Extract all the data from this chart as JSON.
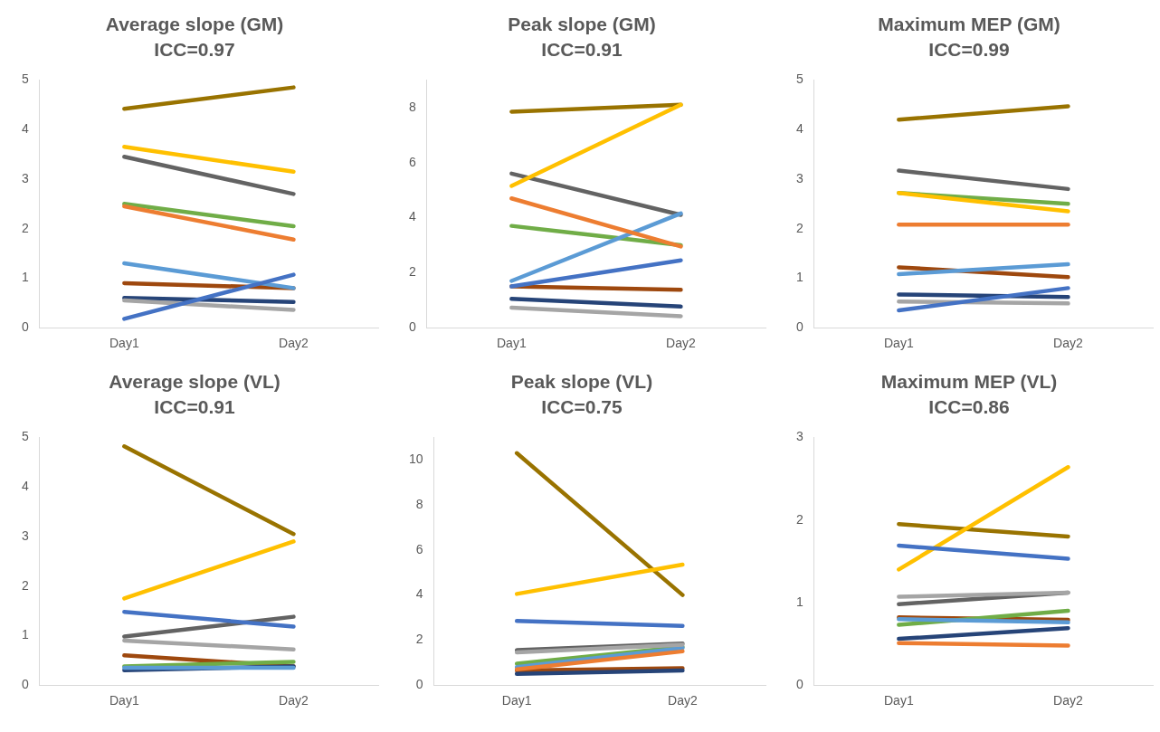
{
  "chart_data": [
    {
      "type": "line",
      "title": "Average slope (GM)",
      "subtitle": "ICC=0.97",
      "categories": [
        "Day1",
        "Day2"
      ],
      "ylim": [
        0,
        5
      ],
      "yticks": [
        0,
        1,
        2,
        3,
        4,
        5
      ],
      "grid": false,
      "series": [
        {
          "color": "#4472c4",
          "values": [
            0.18,
            1.07
          ]
        },
        {
          "color": "#ed7d31",
          "values": [
            2.45,
            1.78
          ]
        },
        {
          "color": "#a5a5a5",
          "values": [
            0.55,
            0.36
          ]
        },
        {
          "color": "#ffc000",
          "values": [
            3.65,
            3.15
          ]
        },
        {
          "color": "#5b9bd5",
          "values": [
            1.3,
            0.8
          ]
        },
        {
          "color": "#70ad47",
          "values": [
            2.5,
            2.05
          ]
        },
        {
          "color": "#264478",
          "values": [
            0.6,
            0.52
          ]
        },
        {
          "color": "#9e480e",
          "values": [
            0.9,
            0.8
          ]
        },
        {
          "color": "#636363",
          "values": [
            3.45,
            2.7
          ]
        },
        {
          "color": "#997300",
          "values": [
            4.42,
            4.85
          ]
        }
      ]
    },
    {
      "type": "line",
      "title": "Peak slope (GM)",
      "subtitle": "ICC=0.91",
      "categories": [
        "Day1",
        "Day2"
      ],
      "ylim": [
        0,
        9
      ],
      "yticks": [
        0,
        2,
        4,
        6,
        8
      ],
      "grid": false,
      "series": [
        {
          "color": "#4472c4",
          "values": [
            1.5,
            2.45
          ]
        },
        {
          "color": "#ed7d31",
          "values": [
            4.7,
            2.95
          ]
        },
        {
          "color": "#a5a5a5",
          "values": [
            0.73,
            0.42
          ]
        },
        {
          "color": "#ffc000",
          "values": [
            5.15,
            8.1
          ]
        },
        {
          "color": "#5b9bd5",
          "values": [
            1.7,
            4.15
          ]
        },
        {
          "color": "#70ad47",
          "values": [
            3.7,
            3.0
          ]
        },
        {
          "color": "#264478",
          "values": [
            1.05,
            0.77
          ]
        },
        {
          "color": "#9e480e",
          "values": [
            1.5,
            1.38
          ]
        },
        {
          "color": "#636363",
          "values": [
            5.6,
            4.1
          ]
        },
        {
          "color": "#997300",
          "values": [
            7.85,
            8.1
          ]
        }
      ]
    },
    {
      "type": "line",
      "title": "Maximum MEP (GM)",
      "subtitle": "ICC=0.99",
      "categories": [
        "Day1",
        "Day2"
      ],
      "ylim": [
        0,
        5
      ],
      "yticks": [
        0,
        1,
        2,
        3,
        4,
        5
      ],
      "grid": false,
      "series": [
        {
          "color": "#4472c4",
          "values": [
            0.35,
            0.8
          ]
        },
        {
          "color": "#ed7d31",
          "values": [
            2.08,
            2.08
          ]
        },
        {
          "color": "#a5a5a5",
          "values": [
            0.53,
            0.49
          ]
        },
        {
          "color": "#ffc000",
          "values": [
            2.72,
            2.35
          ]
        },
        {
          "color": "#5b9bd5",
          "values": [
            1.08,
            1.28
          ]
        },
        {
          "color": "#70ad47",
          "values": [
            2.72,
            2.5
          ]
        },
        {
          "color": "#264478",
          "values": [
            0.67,
            0.62
          ]
        },
        {
          "color": "#9e480e",
          "values": [
            1.22,
            1.02
          ]
        },
        {
          "color": "#636363",
          "values": [
            3.17,
            2.8
          ]
        },
        {
          "color": "#997300",
          "values": [
            4.2,
            4.47
          ]
        }
      ]
    },
    {
      "type": "line",
      "title": "Average slope (VL)",
      "subtitle": "ICC=0.91",
      "categories": [
        "Day1",
        "Day2"
      ],
      "ylim": [
        0,
        5
      ],
      "yticks": [
        0,
        1,
        2,
        3,
        4,
        5
      ],
      "grid": false,
      "series": [
        {
          "color": "#4472c4",
          "values": [
            1.48,
            1.18
          ]
        },
        {
          "color": "#ed7d31",
          "values": [
            null,
            null
          ]
        },
        {
          "color": "#a5a5a5",
          "values": [
            0.9,
            0.72
          ]
        },
        {
          "color": "#ffc000",
          "values": [
            1.75,
            2.9
          ]
        },
        {
          "color": "#5b9bd5",
          "values": [
            0.35,
            0.35
          ]
        },
        {
          "color": "#70ad47",
          "values": [
            0.38,
            0.47
          ]
        },
        {
          "color": "#264478",
          "values": [
            0.3,
            0.38
          ]
        },
        {
          "color": "#9e480e",
          "values": [
            0.6,
            0.38
          ]
        },
        {
          "color": "#636363",
          "values": [
            0.98,
            1.38
          ]
        },
        {
          "color": "#997300",
          "values": [
            4.82,
            3.05
          ]
        }
      ]
    },
    {
      "type": "line",
      "title": "Peak slope (VL)",
      "subtitle": "ICC=0.75",
      "categories": [
        "Day1",
        "Day2"
      ],
      "ylim": [
        0,
        11
      ],
      "yticks": [
        0,
        2,
        4,
        6,
        8,
        10
      ],
      "grid": false,
      "series": [
        {
          "color": "#4472c4",
          "values": [
            2.85,
            2.63
          ]
        },
        {
          "color": "#ed7d31",
          "values": [
            0.7,
            1.5
          ]
        },
        {
          "color": "#a5a5a5",
          "values": [
            1.45,
            1.8
          ]
        },
        {
          "color": "#ffc000",
          "values": [
            4.05,
            5.35
          ]
        },
        {
          "color": "#5b9bd5",
          "values": [
            0.8,
            1.65
          ]
        },
        {
          "color": "#70ad47",
          "values": [
            0.95,
            1.7
          ]
        },
        {
          "color": "#264478",
          "values": [
            0.5,
            0.65
          ]
        },
        {
          "color": "#9e480e",
          "values": [
            0.65,
            0.75
          ]
        },
        {
          "color": "#636363",
          "values": [
            1.55,
            1.85
          ]
        },
        {
          "color": "#997300",
          "values": [
            10.3,
            4.0
          ]
        }
      ]
    },
    {
      "type": "line",
      "title": "Maximum MEP (VL)",
      "subtitle": "ICC=0.86",
      "categories": [
        "Day1",
        "Day2"
      ],
      "ylim": [
        0,
        3
      ],
      "yticks": [
        0,
        1,
        2,
        3
      ],
      "grid": false,
      "series": [
        {
          "color": "#4472c4",
          "values": [
            1.69,
            1.53
          ]
        },
        {
          "color": "#ed7d31",
          "values": [
            0.51,
            0.48
          ]
        },
        {
          "color": "#a5a5a5",
          "values": [
            1.07,
            1.12
          ]
        },
        {
          "color": "#ffc000",
          "values": [
            1.4,
            2.64
          ]
        },
        {
          "color": "#5b9bd5",
          "values": [
            0.8,
            0.76
          ]
        },
        {
          "color": "#70ad47",
          "values": [
            0.73,
            0.9
          ]
        },
        {
          "color": "#264478",
          "values": [
            0.56,
            0.69
          ]
        },
        {
          "color": "#9e480e",
          "values": [
            0.82,
            0.79
          ]
        },
        {
          "color": "#636363",
          "values": [
            0.98,
            1.12
          ]
        },
        {
          "color": "#997300",
          "values": [
            1.95,
            1.8
          ]
        }
      ]
    }
  ]
}
